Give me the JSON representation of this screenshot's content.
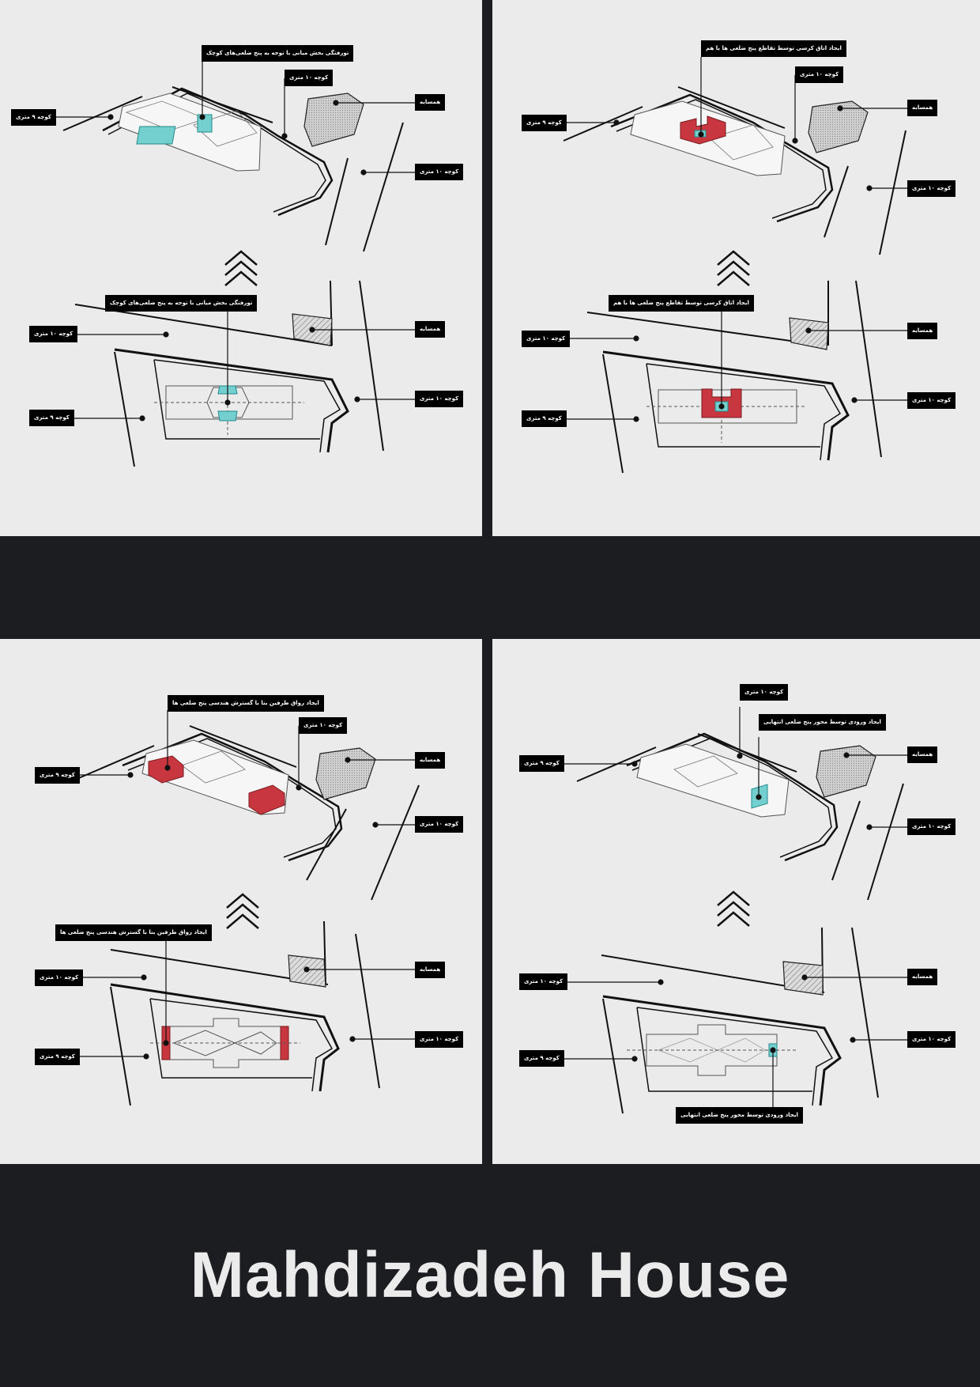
{
  "title": "Mahdizadeh House",
  "colors": {
    "background": "#1c1d21",
    "panel": "#ebebeb",
    "accent_red": "#c8373f",
    "accent_cyan": "#74cfcf",
    "label_bg": "#000000"
  },
  "icons": {
    "step_arrow": "double-chevron-up-icon"
  },
  "panels": [
    {
      "labels": {
        "top_callout": "تورفتگی بخش میانی با توجه به پنج ضلعی‌های کوچک",
        "top_street_10_north": "کوچه ۱۰ متری",
        "top_street_9_west": "کوچه ۹ متری",
        "top_neighbor": "همسایه",
        "top_street_10_east": "کوچه ۱۰ متری",
        "bottom_callout": "تورفتگی بخش میانی با توجه به پنج ضلعی‌های کوچک",
        "bottom_street_10_north": "کوچه ۱۰ متری",
        "bottom_neighbor": "همسایه",
        "bottom_street_10_east": "کوچه ۱۰ متری",
        "bottom_street_9_west": "کوچه ۹ متری"
      }
    },
    {
      "labels": {
        "top_callout": "ایجاد اتاق کرسی توسط تقاطع پنج ضلعی ها با هم",
        "top_street_10_north": "کوچه ۱۰ متری",
        "top_street_9_west": "کوچه ۹ متری",
        "top_neighbor": "همسایه",
        "top_street_10_east": "کوچه ۱۰ متری",
        "bottom_callout": "ایجاد اتاق کرسی توسط تقاطع پنج ضلعی ها با هم",
        "bottom_street_10_north": "کوچه ۱۰ متری",
        "bottom_neighbor": "همسایه",
        "bottom_street_10_east": "کوچه ۱۰ متری",
        "bottom_street_9_west": "کوچه ۹ متری"
      }
    },
    {
      "labels": {
        "top_callout": "ایجاد رواق طرفین بنا با گسترش هندسی پنج ضلعی ها",
        "top_street_10_north": "کوچه ۱۰ متری",
        "top_street_9_west": "کوچه ۹ متری",
        "top_neighbor": "همسایه",
        "top_street_10_east": "کوچه ۱۰ متری",
        "bottom_callout": "ایجاد رواق طرفین بنا با گسترش هندسی پنج ضلعی ها",
        "bottom_street_10_north": "کوچه ۱۰ متری",
        "bottom_neighbor": "همسایه",
        "bottom_street_10_east": "کوچه ۱۰ متری",
        "bottom_street_9_west": "کوچه ۹ متری"
      }
    },
    {
      "labels": {
        "top_callout": "ایجاد ورودی توسط محور پنج ضلعی انتهایی",
        "top_street_10_north": "کوچه ۱۰ متری",
        "top_street_9_west": "کوچه ۹ متری",
        "top_neighbor": "همسایه",
        "top_street_10_east": "کوچه ۱۰ متری",
        "bottom_callout": "ایجاد ورودی توسط محور پنج ضلعی انتهایی",
        "bottom_street_10_north": "کوچه ۱۰ متری",
        "bottom_neighbor": "همسایه",
        "bottom_street_10_east": "کوچه ۱۰ متری",
        "bottom_street_9_west": "کوچه ۹ متری"
      }
    }
  ]
}
